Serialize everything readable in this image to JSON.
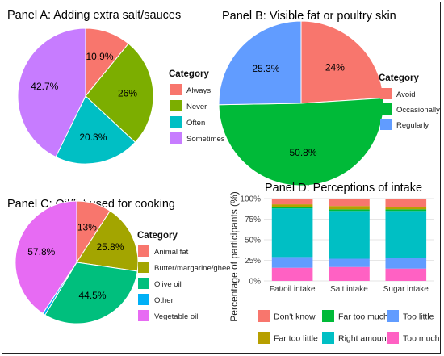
{
  "chart_data": [
    {
      "panel": "A",
      "type": "pie",
      "title": "Panel A: Adding extra salt/sauces",
      "legend_title": "Category",
      "legend_position": "right",
      "slices": [
        {
          "label": "Always",
          "value": 10.9,
          "display": "10.9%",
          "color": "#F8766D"
        },
        {
          "label": "Never",
          "value": 26.0,
          "display": "26%",
          "color": "#7CAE00"
        },
        {
          "label": "Often",
          "value": 20.3,
          "display": "20.3%",
          "color": "#00BFC4"
        },
        {
          "label": "Sometimes",
          "value": 42.7,
          "display": "42.7%",
          "color": "#C77CFF"
        }
      ]
    },
    {
      "panel": "B",
      "type": "pie",
      "title": "Panel B: Visible fat or poultry skin",
      "legend_title": "Category",
      "legend_position": "right",
      "slices": [
        {
          "label": "Avoid",
          "value": 24.0,
          "display": "24%",
          "color": "#F8766D"
        },
        {
          "label": "Occasionally",
          "value": 50.8,
          "display": "50.8%",
          "color": "#00BA38"
        },
        {
          "label": "Regularly",
          "value": 25.3,
          "display": "25.3%",
          "color": "#619CFF"
        }
      ]
    },
    {
      "panel": "C",
      "type": "pie",
      "title": "Panel C: Oil/fat used for cooking",
      "legend_title": "Category",
      "legend_position": "right",
      "slices": [
        {
          "label": "Animal fat",
          "value": 13.0,
          "display": "13%",
          "color": "#F8766D"
        },
        {
          "label": "Butter/margarine/ghee",
          "value": 25.8,
          "display": "25.8%",
          "color": "#A3A500"
        },
        {
          "label": "Olive oil",
          "value": 44.5,
          "display": "44.5%",
          "color": "#00BF7D"
        },
        {
          "label": "Other",
          "value": 1.0,
          "display": "1%",
          "color": "#00B0F6"
        },
        {
          "label": "Vegetable oil",
          "value": 57.8,
          "display": "57.8%",
          "color": "#E76BF3"
        }
      ]
    },
    {
      "panel": "D",
      "type": "bar",
      "stacked": true,
      "title": "Panel D: Perceptions of intake",
      "xlabel": "",
      "ylabel": "Percentage of participants (%)",
      "ylim": [
        0,
        100
      ],
      "yticks": [
        "0%",
        "25%",
        "50%",
        "75%",
        "100%"
      ],
      "grid": true,
      "legend_position": "bottom",
      "categories": [
        "Fat/oil intake",
        "Salt intake",
        "Sugar intake"
      ],
      "series": [
        {
          "name": "Too much",
          "color": "#FF61C3",
          "values": [
            16,
            17,
            15
          ]
        },
        {
          "name": "Too little",
          "color": "#619CFF",
          "values": [
            13,
            10,
            13
          ]
        },
        {
          "name": "Right amount",
          "color": "#00BFC4",
          "values": [
            59,
            58,
            57
          ]
        },
        {
          "name": "Far too much",
          "color": "#00BA38",
          "values": [
            2,
            2,
            2
          ]
        },
        {
          "name": "Far too little",
          "color": "#B79F00",
          "values": [
            3,
            4,
            3
          ]
        },
        {
          "name": "Don't know",
          "color": "#F8766D",
          "values": [
            7,
            9,
            10
          ]
        }
      ],
      "legend_order": [
        "Don't know",
        "Far too much",
        "Too little",
        "Far too little",
        "Right amount",
        "Too much"
      ]
    }
  ]
}
